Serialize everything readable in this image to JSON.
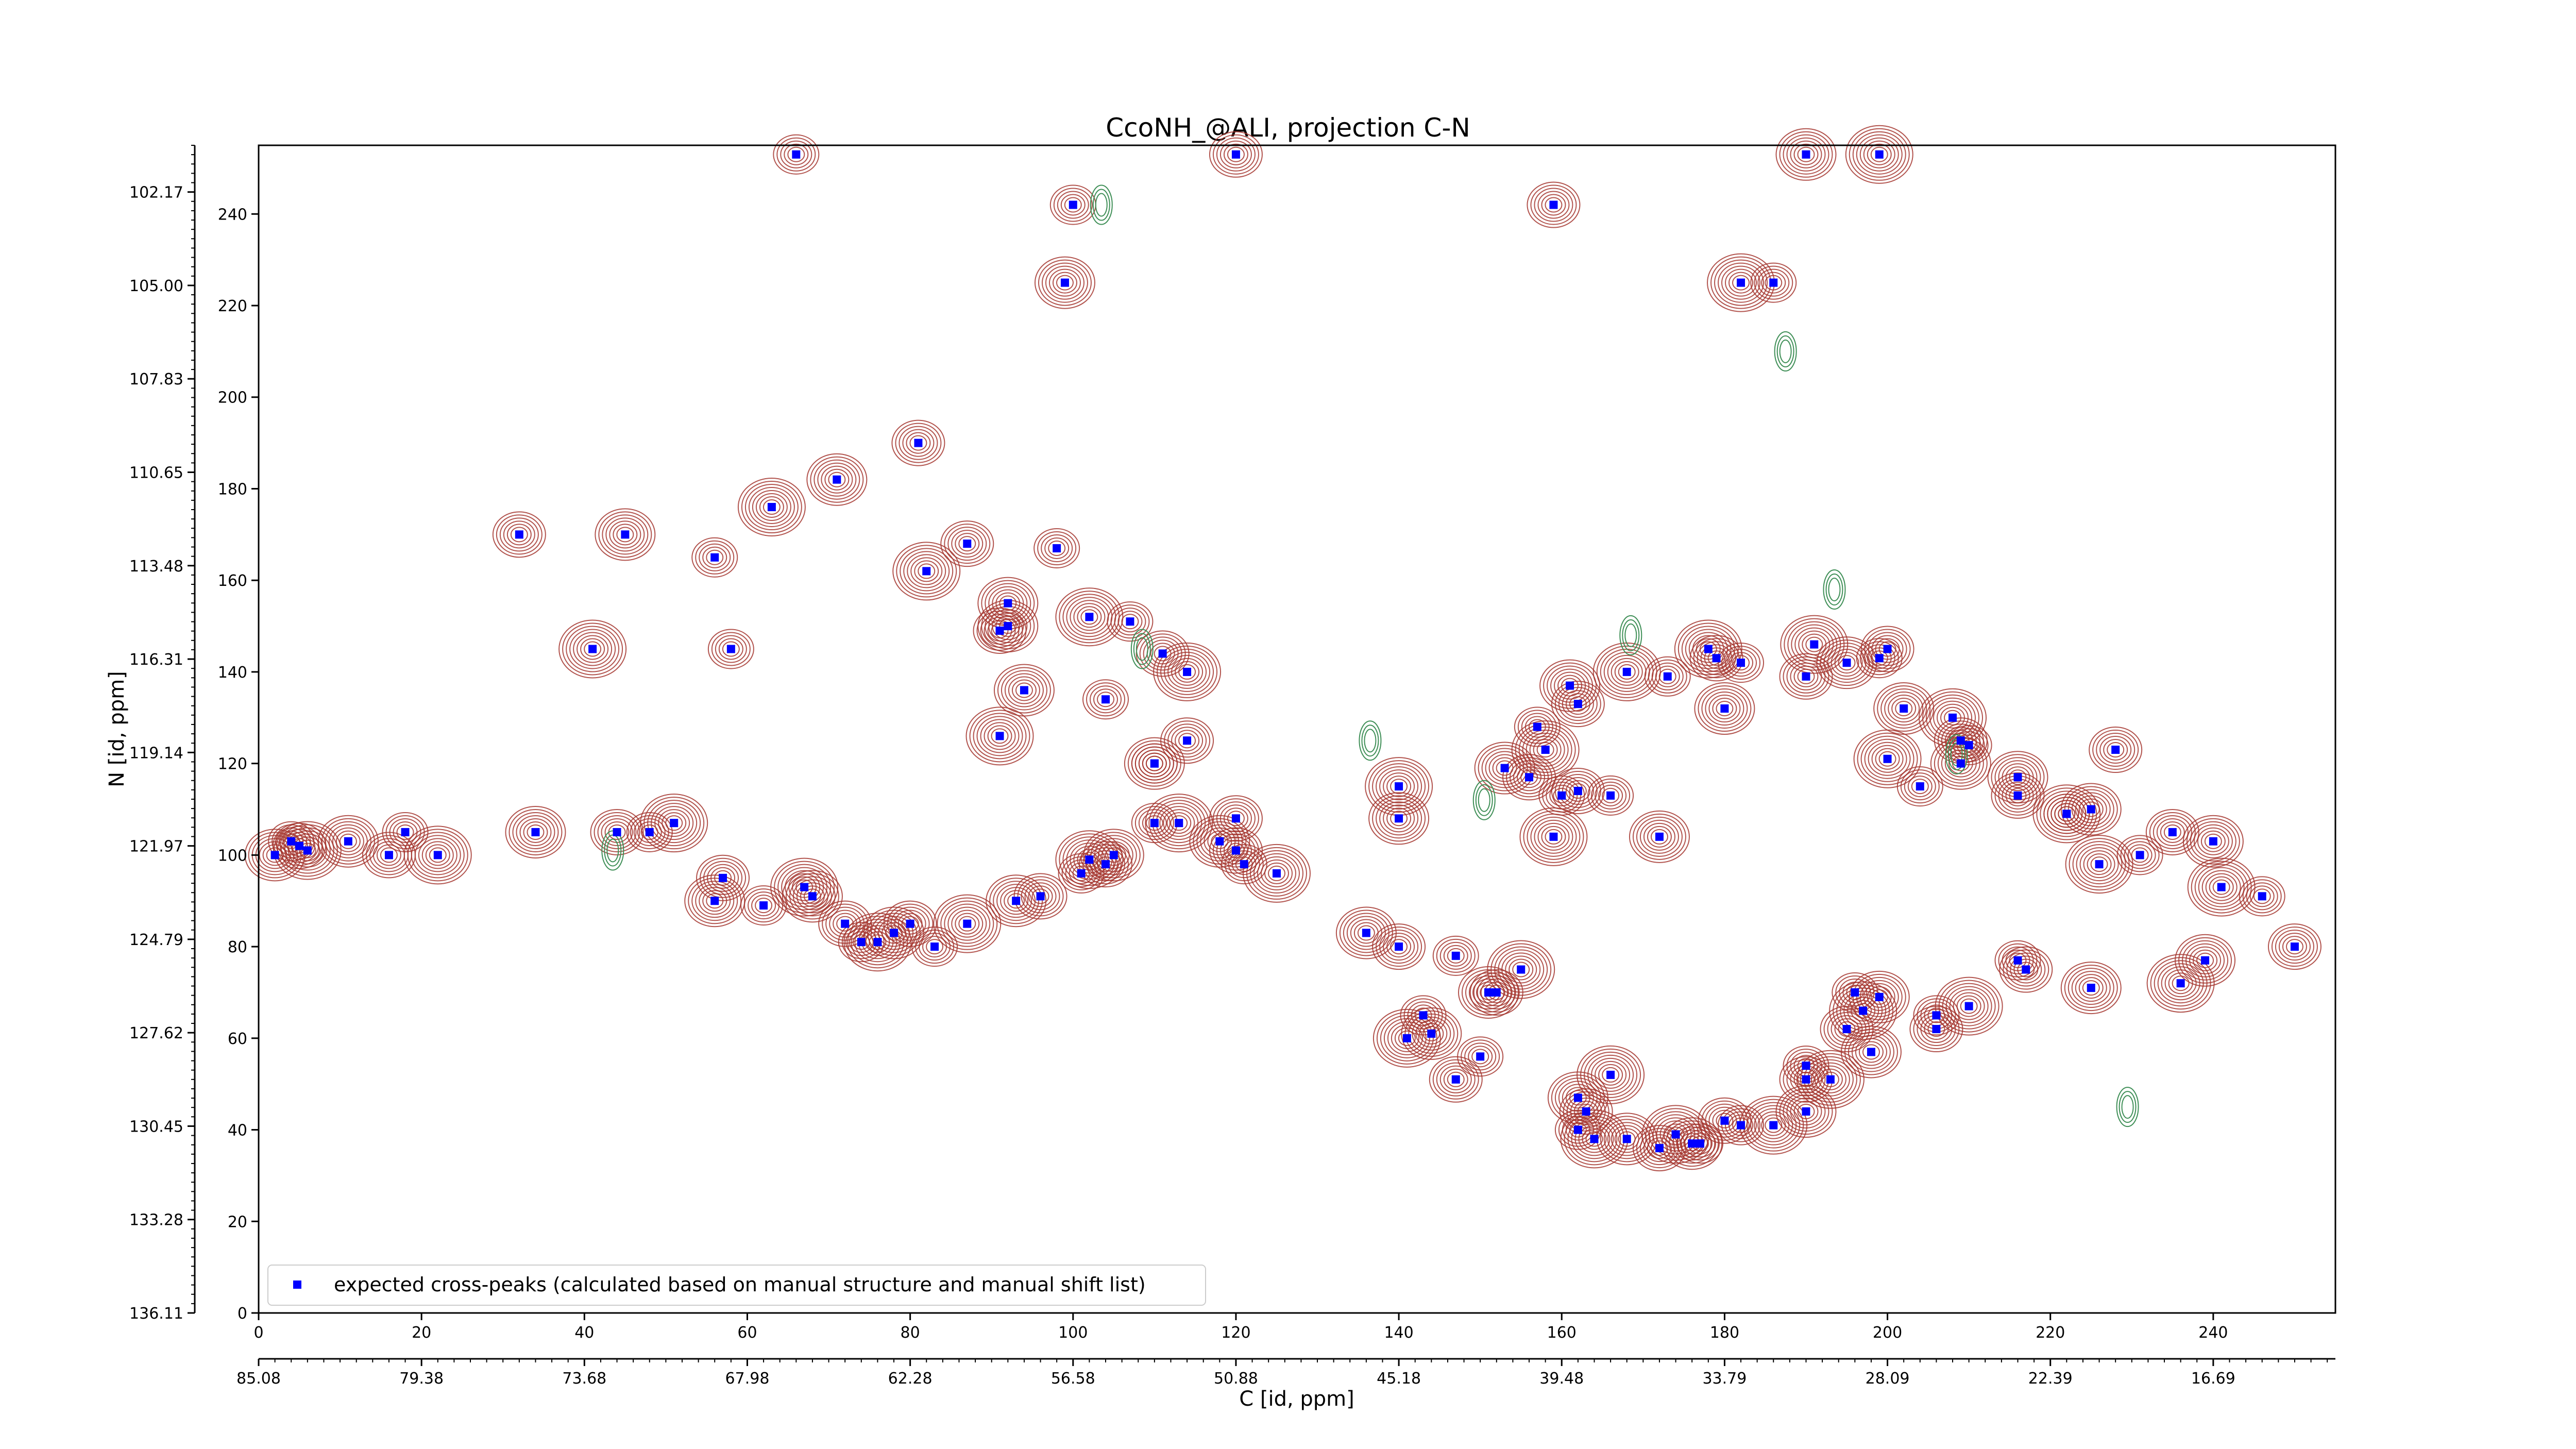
{
  "chart_data": {
    "type": "scatter",
    "title": "CcoNH_@ALI, projection C-N",
    "xlabel": "C [id, ppm]",
    "ylabel": "N [id, ppm]",
    "xlim": [
      0,
      255
    ],
    "ylim": [
      0,
      255
    ],
    "grid": false,
    "x_ticks": [
      0,
      20,
      40,
      60,
      80,
      100,
      120,
      140,
      160,
      180,
      200,
      220,
      240
    ],
    "y_ticks": [
      0,
      20,
      40,
      60,
      80,
      100,
      120,
      140,
      160,
      180,
      200,
      220,
      240
    ],
    "secondary_x_ticks": [
      "85.08",
      "79.38",
      "73.68",
      "67.98",
      "62.28",
      "56.58",
      "50.88",
      "45.18",
      "39.48",
      "33.79",
      "28.09",
      "22.39",
      "16.69"
    ],
    "secondary_y_ticks": [
      "136.11",
      "133.28",
      "130.45",
      "127.62",
      "124.79",
      "121.97",
      "119.14",
      "116.31",
      "113.48",
      "110.65",
      "107.83",
      "105.00",
      "102.17"
    ],
    "legend": {
      "placement": "lower-left",
      "entries": [
        "expected cross-peaks (calculated based on manual structure and manual shift list)"
      ]
    },
    "colors": {
      "marker": "#0000ff",
      "contour_positive": "#a5362f",
      "contour_negative": "#3f8f57"
    },
    "series": [
      {
        "name": "expected cross-peaks (calculated based on manual structure and manual shift list)",
        "x": [
          66,
          120,
          190,
          199,
          100,
          159,
          99,
          182,
          186,
          32,
          45,
          41,
          58,
          91,
          92,
          82,
          98,
          81,
          71,
          63,
          56,
          87,
          92,
          102,
          107,
          111,
          94,
          114,
          104,
          114,
          110,
          91,
          110,
          120,
          140,
          140,
          166,
          162,
          172,
          159,
          160,
          156,
          153,
          158,
          157,
          162,
          161,
          168,
          173,
          179,
          180,
          178,
          182,
          190,
          195,
          191,
          199,
          200,
          202,
          208,
          210,
          209,
          209,
          200,
          204,
          216,
          216,
          222,
          222,
          228,
          225,
          226,
          231,
          235,
          240,
          241,
          246,
          250,
          239,
          236,
          216,
          217,
          225,
          210,
          206,
          206,
          199,
          197,
          196,
          195,
          198,
          193,
          190,
          190,
          190,
          186,
          182,
          180,
          176,
          174,
          177,
          172,
          168,
          164,
          162,
          163,
          162,
          166,
          150,
          147,
          144,
          141,
          143,
          152,
          151,
          155,
          147,
          140,
          136,
          125,
          121,
          120,
          118,
          113,
          110,
          104,
          105,
          102,
          101,
          96,
          93,
          87,
          83,
          80,
          78,
          76,
          74,
          72,
          68,
          67,
          62,
          57,
          56,
          51,
          48,
          44,
          34,
          22,
          18,
          16,
          11,
          6,
          4,
          5,
          2
        ],
        "y": [
          253,
          253,
          253,
          253,
          242,
          242,
          225,
          225,
          225,
          170,
          170,
          145,
          145,
          149,
          150,
          162,
          167,
          190,
          182,
          176,
          165,
          168,
          155,
          152,
          151,
          144,
          136,
          140,
          134,
          125,
          120,
          126,
          120,
          108,
          108,
          115,
          113,
          114,
          104,
          104,
          113,
          117,
          119,
          123,
          128,
          133,
          137,
          140,
          139,
          143,
          132,
          145,
          142,
          139,
          142,
          146,
          143,
          145,
          132,
          130,
          124,
          125,
          120,
          121,
          115,
          113,
          117,
          109,
          109,
          123,
          110,
          98,
          100,
          105,
          103,
          93,
          91,
          80,
          77,
          72,
          77,
          75,
          71,
          67,
          65,
          62,
          69,
          66,
          70,
          62,
          57,
          51,
          54,
          51,
          44,
          41,
          41,
          42,
          37,
          39,
          37,
          36,
          38,
          38,
          40,
          44,
          47,
          52,
          56,
          51,
          61,
          60,
          65,
          70,
          70,
          75,
          78,
          80,
          83,
          96,
          98,
          101,
          103,
          107,
          107,
          98,
          100,
          99,
          96,
          91,
          90,
          85,
          80,
          85,
          83,
          81,
          81,
          85,
          91,
          93,
          89,
          95,
          90,
          107,
          105,
          105,
          105,
          100,
          105,
          100,
          103,
          101,
          103,
          102,
          100
        ]
      }
    ]
  },
  "legend_text": "expected cross-peaks (calculated based on manual structure and manual shift list)",
  "page": {
    "title": "CcoNH_@ALI, projection C-N",
    "xlabel": "C [id, ppm]",
    "ylabel": "N [id, ppm]"
  }
}
